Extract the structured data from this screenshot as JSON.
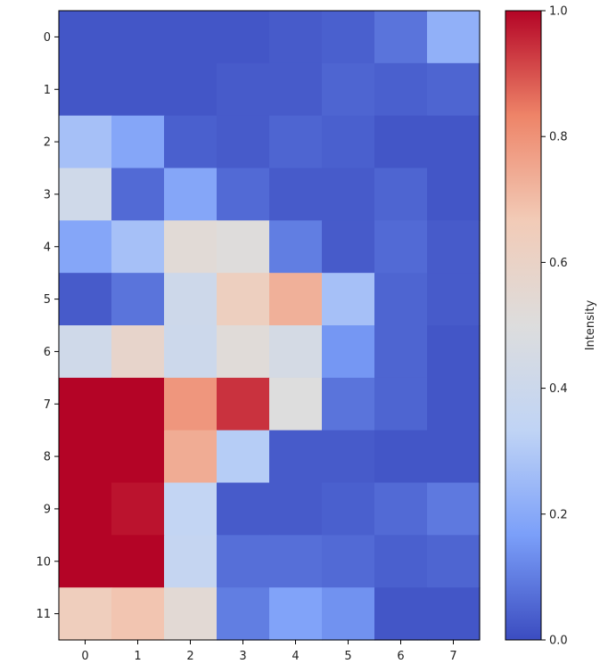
{
  "chart_data": {
    "type": "heatmap",
    "title": "",
    "xlabel": "",
    "ylabel": "",
    "x_tick_labels": [
      "0",
      "1",
      "2",
      "3",
      "4",
      "5",
      "6",
      "7"
    ],
    "y_tick_labels": [
      "0",
      "1",
      "2",
      "3",
      "4",
      "5",
      "6",
      "7",
      "8",
      "9",
      "10",
      "11"
    ],
    "values": [
      [
        0.02,
        0.02,
        0.02,
        0.02,
        0.03,
        0.04,
        0.08,
        0.22
      ],
      [
        0.02,
        0.02,
        0.02,
        0.03,
        0.03,
        0.05,
        0.04,
        0.05
      ],
      [
        0.27,
        0.19,
        0.04,
        0.03,
        0.05,
        0.04,
        0.02,
        0.02
      ],
      [
        0.42,
        0.06,
        0.19,
        0.06,
        0.03,
        0.03,
        0.05,
        0.02
      ],
      [
        0.19,
        0.27,
        0.53,
        0.51,
        0.1,
        0.03,
        0.06,
        0.03
      ],
      [
        0.03,
        0.08,
        0.41,
        0.63,
        0.73,
        0.27,
        0.05,
        0.03
      ],
      [
        0.42,
        0.58,
        0.4,
        0.52,
        0.45,
        0.15,
        0.05,
        0.02
      ],
      [
        1.0,
        1.0,
        0.79,
        0.94,
        0.5,
        0.08,
        0.05,
        0.02
      ],
      [
        1.0,
        1.0,
        0.74,
        0.31,
        0.03,
        0.03,
        0.02,
        0.02
      ],
      [
        1.0,
        0.98,
        0.35,
        0.03,
        0.03,
        0.04,
        0.06,
        0.09
      ],
      [
        1.0,
        1.0,
        0.36,
        0.07,
        0.07,
        0.06,
        0.04,
        0.05
      ],
      [
        0.64,
        0.68,
        0.54,
        0.1,
        0.18,
        0.14,
        0.02,
        0.02
      ]
    ],
    "colormap": "coolwarm",
    "colormap_stops": [
      "#3b4cc0",
      "#7b9ff9",
      "#c0d4f5",
      "#dddddd",
      "#f2cbb7",
      "#ee8468",
      "#b40426"
    ],
    "colorbar": {
      "label": "Intensity",
      "range": [
        0.0,
        1.0
      ],
      "tick_labels": [
        "0.0",
        "0.2",
        "0.4",
        "0.6",
        "0.8",
        "1.0"
      ],
      "tick_values": [
        0.0,
        0.2,
        0.4,
        0.6,
        0.8,
        1.0
      ]
    },
    "grid": false,
    "legend": "none"
  }
}
